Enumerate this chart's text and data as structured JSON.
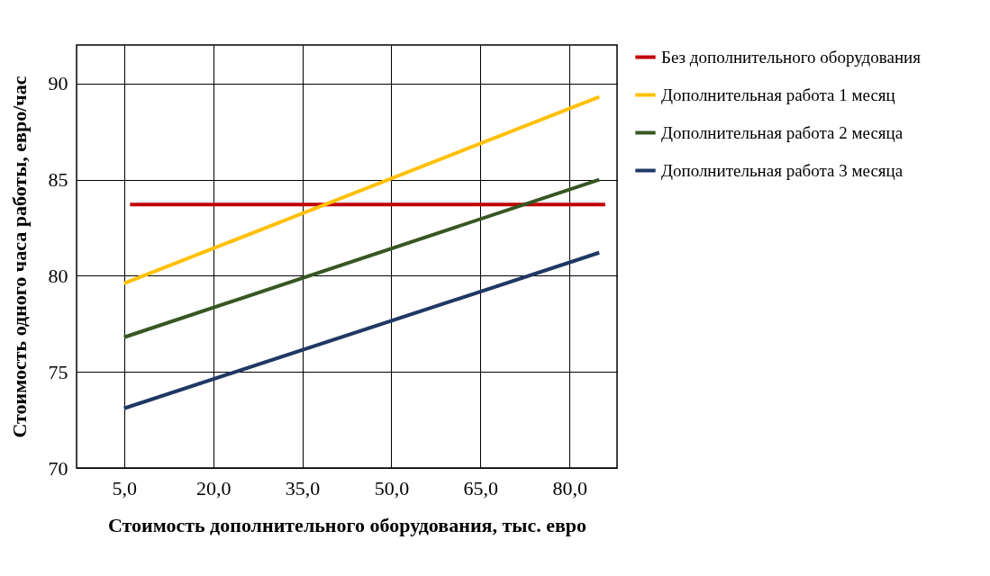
{
  "chart_data": {
    "type": "line",
    "xlabel": "Стоимость дополнительного оборудования, тыс. евро",
    "ylabel": "Стоимость одного часа работы, евро/час",
    "x": [
      5,
      85
    ],
    "xlim": [
      -3,
      88
    ],
    "xticks": [
      {
        "value": 5,
        "label": "5,0"
      },
      {
        "value": 20,
        "label": "20,0"
      },
      {
        "value": 35,
        "label": "35,0"
      },
      {
        "value": 50,
        "label": "50,0"
      },
      {
        "value": 65,
        "label": "65,0"
      },
      {
        "value": 80,
        "label": "80,0"
      }
    ],
    "ylim": [
      70,
      92
    ],
    "yticks": [
      70,
      75,
      80,
      85,
      90
    ],
    "grid": true,
    "legend": "right",
    "series": [
      {
        "name": "Без дополнительного оборудования",
        "color": "#c00000",
        "x": [
          6,
          86
        ],
        "values": [
          83.7,
          83.7
        ]
      },
      {
        "name": "Дополнительная работа 1 месяц",
        "color": "#ffc000",
        "values": [
          79.6,
          89.3
        ]
      },
      {
        "name": "Дополнительная работа 2 месяца",
        "color": "#375623",
        "values": [
          76.8,
          85.0
        ]
      },
      {
        "name": "Дополнительная работа 3 месяца",
        "color": "#1f3864",
        "values": [
          73.1,
          81.2
        ]
      }
    ]
  }
}
